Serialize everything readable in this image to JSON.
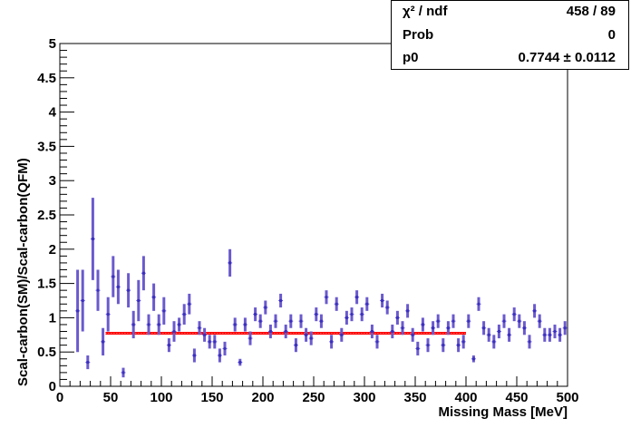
{
  "chart_data": {
    "type": "scatter",
    "title": "",
    "xlabel": "Missing Mass [MeV]",
    "ylabel": "Scal-carbon(SM)/Scal-carbon(QFM)",
    "xlim": [
      0,
      500
    ],
    "ylim": [
      0,
      5
    ],
    "x_ticks": [
      "0",
      "50",
      "100",
      "150",
      "200",
      "250",
      "300",
      "350",
      "400",
      "450",
      "500"
    ],
    "y_ticks": [
      "0",
      "0.5",
      "1",
      "1.5",
      "2",
      "2.5",
      "3",
      "3.5",
      "4",
      "4.5",
      "5"
    ],
    "grid": false,
    "legend": "none",
    "marker_color": "#3b2fbf",
    "errorbar_color": "#6a5acd",
    "fit_color": "#ff0000",
    "series": [
      {
        "points": [
          [
            17.5,
            1.1,
            0.6
          ],
          [
            22.5,
            1.25,
            0.45
          ],
          [
            27.5,
            0.35,
            0.1
          ],
          [
            32.5,
            2.15,
            0.6
          ],
          [
            37.5,
            1.4,
            0.3
          ],
          [
            42.5,
            0.65,
            0.2
          ],
          [
            47.5,
            1.05,
            0.25
          ],
          [
            52.5,
            1.6,
            0.3
          ],
          [
            57.5,
            1.45,
            0.25
          ],
          [
            62.5,
            0.2,
            0.07
          ],
          [
            67.5,
            1.4,
            0.25
          ],
          [
            72.5,
            0.9,
            0.2
          ],
          [
            77.5,
            1.25,
            0.3
          ],
          [
            82.5,
            1.65,
            0.25
          ],
          [
            87.5,
            0.9,
            0.15
          ],
          [
            92.5,
            1.3,
            0.2
          ],
          [
            97.5,
            0.9,
            0.15
          ],
          [
            102.5,
            1.1,
            0.2
          ],
          [
            107.5,
            0.6,
            0.1
          ],
          [
            112.5,
            0.8,
            0.15
          ],
          [
            117.5,
            0.9,
            0.1
          ],
          [
            122.5,
            1.05,
            0.15
          ],
          [
            127.5,
            1.2,
            0.15
          ],
          [
            132.5,
            0.45,
            0.1
          ],
          [
            137.5,
            0.85,
            0.1
          ],
          [
            142.5,
            0.75,
            0.1
          ],
          [
            147.5,
            0.65,
            0.1
          ],
          [
            152.5,
            0.65,
            0.1
          ],
          [
            157.5,
            0.45,
            0.1
          ],
          [
            162.5,
            0.55,
            0.1
          ],
          [
            167.5,
            1.8,
            0.2
          ],
          [
            172.5,
            0.9,
            0.1
          ],
          [
            177.5,
            0.35,
            0.05
          ],
          [
            182.5,
            0.9,
            0.1
          ],
          [
            187.5,
            0.7,
            0.1
          ],
          [
            192.5,
            1.05,
            0.1
          ],
          [
            197.5,
            0.95,
            0.1
          ],
          [
            202.5,
            1.15,
            0.1
          ],
          [
            207.5,
            0.8,
            0.1
          ],
          [
            212.5,
            0.95,
            0.1
          ],
          [
            217.5,
            1.25,
            0.1
          ],
          [
            222.5,
            0.8,
            0.1
          ],
          [
            227.5,
            0.95,
            0.1
          ],
          [
            232.5,
            0.6,
            0.1
          ],
          [
            237.5,
            0.95,
            0.1
          ],
          [
            242.5,
            0.75,
            0.1
          ],
          [
            247.5,
            0.7,
            0.1
          ],
          [
            252.5,
            1.05,
            0.1
          ],
          [
            257.5,
            0.95,
            0.1
          ],
          [
            262.5,
            1.3,
            0.1
          ],
          [
            267.5,
            0.65,
            0.1
          ],
          [
            272.5,
            1.2,
            0.1
          ],
          [
            277.5,
            0.75,
            0.1
          ],
          [
            282.5,
            1.0,
            0.1
          ],
          [
            287.5,
            1.05,
            0.1
          ],
          [
            292.5,
            1.3,
            0.1
          ],
          [
            297.5,
            1.05,
            0.1
          ],
          [
            302.5,
            1.2,
            0.1
          ],
          [
            307.5,
            0.8,
            0.1
          ],
          [
            312.5,
            0.65,
            0.1
          ],
          [
            317.5,
            1.25,
            0.1
          ],
          [
            322.5,
            1.15,
            0.1
          ],
          [
            327.5,
            0.8,
            0.1
          ],
          [
            332.5,
            1.0,
            0.1
          ],
          [
            337.5,
            0.85,
            0.1
          ],
          [
            342.5,
            1.1,
            0.1
          ],
          [
            347.5,
            0.75,
            0.1
          ],
          [
            352.5,
            0.55,
            0.1
          ],
          [
            357.5,
            0.9,
            0.1
          ],
          [
            362.5,
            0.6,
            0.1
          ],
          [
            367.5,
            0.85,
            0.1
          ],
          [
            372.5,
            0.95,
            0.1
          ],
          [
            377.5,
            0.6,
            0.1
          ],
          [
            382.5,
            0.85,
            0.1
          ],
          [
            387.5,
            0.95,
            0.1
          ],
          [
            392.5,
            0.6,
            0.1
          ],
          [
            397.5,
            0.65,
            0.1
          ],
          [
            402.5,
            0.95,
            0.1
          ],
          [
            407.5,
            0.4,
            0.05
          ],
          [
            412.5,
            1.2,
            0.1
          ],
          [
            417.5,
            0.85,
            0.1
          ],
          [
            422.5,
            0.75,
            0.1
          ],
          [
            427.5,
            0.65,
            0.1
          ],
          [
            432.5,
            0.8,
            0.1
          ],
          [
            437.5,
            0.95,
            0.1
          ],
          [
            442.5,
            0.75,
            0.1
          ],
          [
            447.5,
            1.05,
            0.1
          ],
          [
            452.5,
            0.95,
            0.1
          ],
          [
            457.5,
            0.85,
            0.1
          ],
          [
            462.5,
            0.65,
            0.1
          ],
          [
            467.5,
            1.1,
            0.1
          ],
          [
            472.5,
            0.95,
            0.1
          ],
          [
            477.5,
            0.75,
            0.1
          ],
          [
            482.5,
            0.75,
            0.1
          ],
          [
            487.5,
            0.8,
            0.1
          ],
          [
            492.5,
            0.75,
            0.1
          ],
          [
            497.5,
            0.85,
            0.1
          ]
        ]
      }
    ],
    "fit": {
      "x_start": 45,
      "x_end": 400,
      "value": 0.7744
    }
  },
  "stats": [
    {
      "key": "χ² / ndf",
      "value": "458 / 89"
    },
    {
      "key": "Prob",
      "value": "0"
    },
    {
      "key": "p0",
      "value": "0.7744 ± 0.0112"
    }
  ]
}
